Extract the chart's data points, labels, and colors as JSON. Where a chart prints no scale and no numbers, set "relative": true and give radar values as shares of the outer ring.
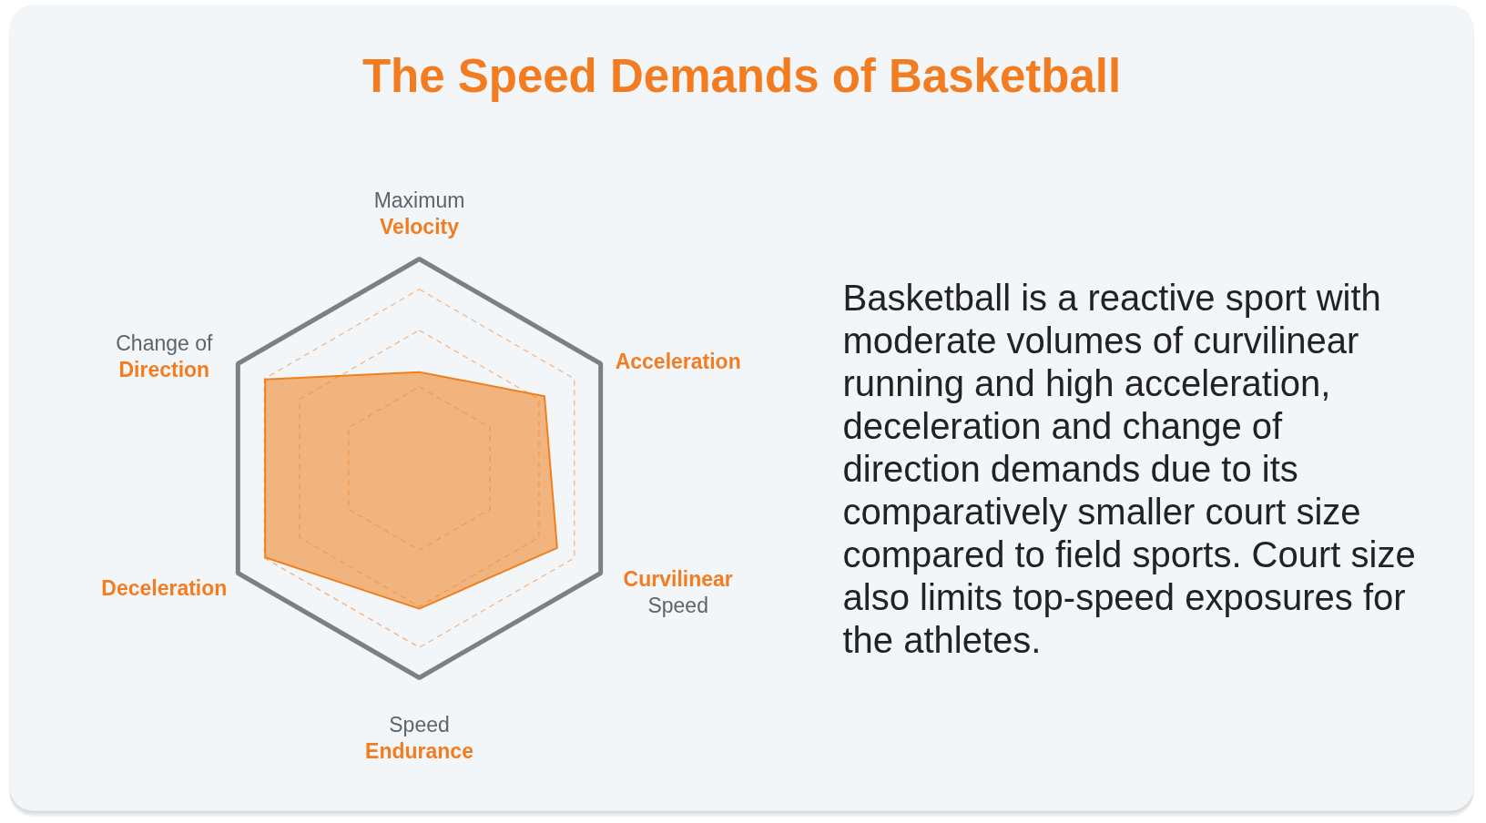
{
  "chart_data": {
    "type": "radar",
    "title": "The Speed Demands of Basketball",
    "categories": [
      "Maximum Velocity",
      "Acceleration",
      "Curvilinear Speed",
      "Speed Endurance",
      "Deceleration",
      "Change of Direction"
    ],
    "relative": true,
    "grid": true,
    "series": [
      {
        "color": "#f0801e",
        "values": [
          0.46,
          0.69,
          0.76,
          0.67,
          0.85,
          0.85
        ]
      }
    ],
    "annotations": [
      "Basketball is a reactive sport with moderate volumes of curvilinear running and high acceleration, deceleration and change of direction demands due to its comparatively smaller court size compared to field sports. Court size also limits top-speed exposures for the athletes."
    ]
  }
}
